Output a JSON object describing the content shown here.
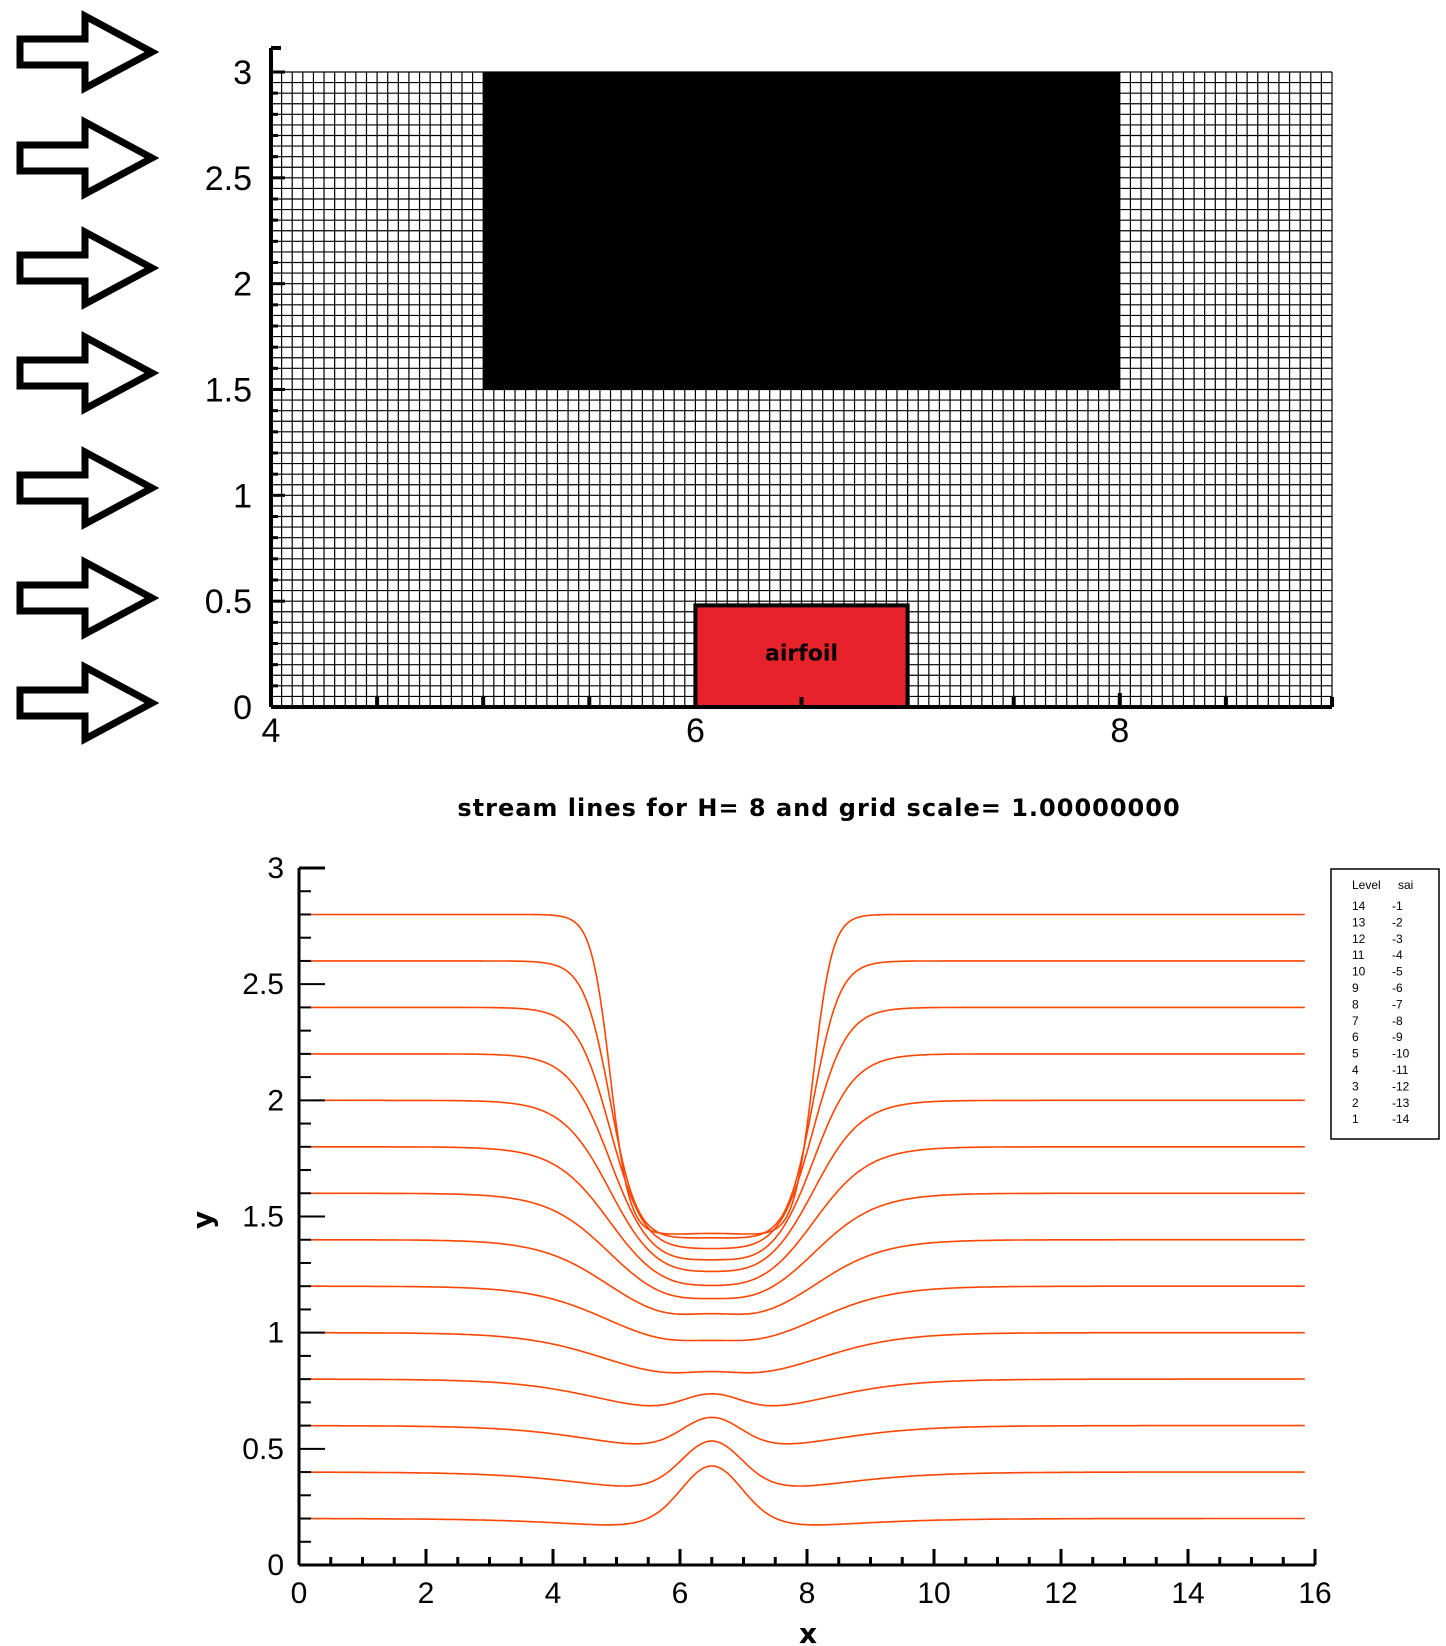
{
  "colors": {
    "background": "#ffffff",
    "grid_line": "#000000",
    "obstacle_fill": "#000000",
    "airfoil_fill": "#e8222a",
    "streamline": "#ff4500",
    "arrow_stroke": "#000000"
  },
  "icons": {
    "inflow_arrow": "right-arrow-outline-icon",
    "inflow_arrow_count": 7
  },
  "chart_data": [
    {
      "type": "diagram-grid",
      "xlim": [
        4,
        9
      ],
      "ylim": [
        0,
        3
      ],
      "x_ticks": [
        4,
        6,
        8
      ],
      "y_ticks": [
        0,
        0.5,
        1,
        1.5,
        2,
        2.5,
        3
      ],
      "x_tick_labels": [
        "4",
        "6",
        "8"
      ],
      "y_tick_labels": [
        "0",
        "0.5",
        "1",
        "1.5",
        "2",
        "2.5",
        "3"
      ],
      "grid": true,
      "grid_spacing": 0.05,
      "obstacle": {
        "x": [
          5,
          8
        ],
        "y": [
          1.5,
          3
        ],
        "color": "black"
      },
      "airfoil": {
        "x": [
          6,
          7
        ],
        "y": [
          0,
          0.48
        ],
        "label": "airfoil"
      }
    },
    {
      "type": "line",
      "title": "stream lines for H= 8 and grid scale= 1.00000000",
      "xlabel": "x",
      "ylabel": "y",
      "xlim": [
        0,
        16
      ],
      "ylim": [
        0,
        3
      ],
      "x_ticks": [
        0,
        2,
        4,
        6,
        8,
        10,
        12,
        14,
        16
      ],
      "y_ticks": [
        0,
        0.5,
        1,
        1.5,
        2,
        2.5,
        3
      ],
      "x_tick_labels": [
        "0",
        "2",
        "4",
        "6",
        "8",
        "10",
        "12",
        "14",
        "16"
      ],
      "y_tick_labels": [
        "0",
        "0.5",
        "1",
        "1.5",
        "2",
        "2.5",
        "3"
      ],
      "grid": false,
      "legend": {
        "placement": "top-right",
        "header": [
          "Level",
          "sai"
        ],
        "rows": [
          [
            "14",
            "-1"
          ],
          [
            "13",
            "-2"
          ],
          [
            "12",
            "-3"
          ],
          [
            "11",
            "-4"
          ],
          [
            "10",
            "-5"
          ],
          [
            "9",
            "-6"
          ],
          [
            "8",
            "-7"
          ],
          [
            "7",
            "-8"
          ],
          [
            "6",
            "-9"
          ],
          [
            "5",
            "-10"
          ],
          [
            "4",
            "-11"
          ],
          [
            "3",
            "-12"
          ],
          [
            "2",
            "-13"
          ],
          [
            "1",
            "-14"
          ]
        ]
      },
      "series": [
        {
          "level": 1,
          "y_far": 0.2,
          "y_gap": 0.13,
          "y_top": 0.58
        },
        {
          "level": 2,
          "y_far": 0.4,
          "y_gap": 0.27,
          "y_top": 0.64
        },
        {
          "level": 3,
          "y_far": 0.6,
          "y_gap": 0.45,
          "y_top": 0.69
        },
        {
          "level": 4,
          "y_far": 0.8,
          "y_gap": 0.61,
          "y_top": 0.75
        },
        {
          "level": 5,
          "y_far": 1.0,
          "y_gap": 0.76,
          "y_top": 0.81
        },
        {
          "level": 6,
          "y_far": 1.2,
          "y_gap": 0.9,
          "y_top": 0.94
        },
        {
          "level": 7,
          "y_far": 1.4,
          "y_gap": 1.0,
          "y_top": 1.06
        },
        {
          "level": 8,
          "y_far": 1.6,
          "y_gap": 1.08,
          "y_top": 1.12
        },
        {
          "level": 9,
          "y_far": 1.8,
          "y_gap": 1.15,
          "y_top": 1.18
        },
        {
          "level": 10,
          "y_far": 2.0,
          "y_gap": 1.22,
          "y_top": 1.25
        },
        {
          "level": 11,
          "y_far": 2.2,
          "y_gap": 1.28,
          "y_top": 1.31
        },
        {
          "level": 12,
          "y_far": 2.4,
          "y_gap": 1.35,
          "y_top": 1.36
        },
        {
          "level": 13,
          "y_far": 2.6,
          "y_gap": 1.4,
          "y_top": 1.41
        },
        {
          "level": 14,
          "y_far": 2.8,
          "y_gap": 1.42,
          "y_top": 1.43
        }
      ]
    }
  ]
}
